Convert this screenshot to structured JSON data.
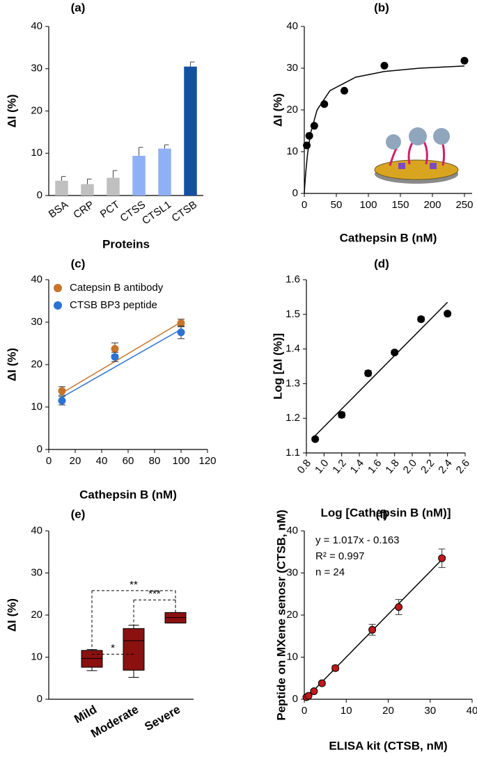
{
  "chart_data": [
    {
      "type": "bar",
      "title": "(a)",
      "xlabel": "Proteins",
      "ylabel": "ΔI (%)",
      "categories": [
        "BSA",
        "CRP",
        "PCT",
        "CTSS",
        "CTSL1",
        "CTSB"
      ],
      "values": [
        3.5,
        2.7,
        4.2,
        9.4,
        11.1,
        30.5
      ],
      "errors": [
        1.0,
        1.2,
        1.7,
        2.0,
        0.9,
        1.1
      ],
      "colors": [
        "#c0c0c0",
        "#c0c0c0",
        "#c0c0c0",
        "#8fb0f5",
        "#8fb0f5",
        "#1450a0"
      ],
      "ylim": [
        0,
        40
      ],
      "yticks": [
        0,
        10,
        20,
        30,
        40
      ]
    },
    {
      "type": "scatter",
      "title": "(b)",
      "xlabel": "Cathepsin B (nM)",
      "ylabel": "ΔI (%)",
      "series": [
        {
          "color": "#000000",
          "x": [
            3.9,
            7.8,
            15.6,
            31.25,
            62.5,
            125,
            250
          ],
          "values": [
            11.5,
            13.8,
            16.2,
            21.4,
            24.6,
            30.6,
            31.8
          ],
          "fit": {
            "x": [
              0,
              0.5,
              2,
              5,
              10,
              20,
              40,
              80,
              125,
              180,
              250
            ],
            "values": [
              0,
              1.28,
              4.57,
              9.41,
              14.55,
              20.0,
              24.62,
              27.83,
              29.2,
              30.0,
              30.53
            ]
          }
        }
      ],
      "xlim": [
        0,
        262
      ],
      "xticks": [
        0,
        50,
        100,
        150,
        200,
        250
      ],
      "ylim": [
        0,
        40
      ],
      "yticks": [
        0,
        10,
        20,
        30,
        40
      ]
    },
    {
      "type": "scatter",
      "title": "(c)",
      "xlabel": "Cathepsin B (nM)",
      "ylabel": "ΔI (%)",
      "series": [
        {
          "name": "Catepsin B antibody",
          "color": "#c8742a",
          "x": [
            10,
            50,
            100
          ],
          "values": [
            13.8,
            23.7,
            29.8
          ],
          "errors": [
            1.0,
            1.4,
            0.9
          ],
          "fit": {
            "x": [
              10,
              100
            ],
            "values": [
              13.3,
              30.0
            ]
          }
        },
        {
          "name": "CTSB BP3 peptide",
          "color": "#2b72d3",
          "x": [
            10,
            50,
            100
          ],
          "values": [
            11.5,
            21.8,
            27.6
          ],
          "errors": [
            1.0,
            1.1,
            1.5
          ],
          "fit": {
            "x": [
              10,
              100
            ],
            "values": [
              12.3,
              28.3
            ]
          }
        }
      ],
      "legend": "upper left",
      "xlim": [
        0,
        120
      ],
      "xticks": [
        0,
        20,
        40,
        60,
        80,
        100,
        120
      ],
      "ylim": [
        0,
        40
      ],
      "yticks": [
        0,
        10,
        20,
        30,
        40
      ]
    },
    {
      "type": "scatter",
      "title": "(d)",
      "xlabel": "Log [Cathepsin B (nM)]",
      "ylabel": "Log [ΔI (%)]",
      "series": [
        {
          "color": "#000000",
          "x": [
            0.9,
            1.2,
            1.5,
            1.8,
            2.1,
            2.4
          ],
          "values": [
            1.14,
            1.21,
            1.33,
            1.39,
            1.486,
            1.502
          ],
          "errors": [
            0.005,
            0.008,
            0.008,
            0.006,
            0.007,
            0.005
          ],
          "fit": {
            "x": [
              0.9,
              2.4
            ],
            "values": [
              1.15,
              1.535
            ]
          }
        }
      ],
      "xlim": [
        0.8,
        2.6
      ],
      "xticks": [
        0.8,
        {
          "value": 1,
          "label": "1.0"
        },
        1.2,
        1.4,
        1.6,
        1.8,
        {
          "value": 2,
          "label": "2.0"
        },
        2.2,
        2.4,
        2.6
      ],
      "ylim": [
        1.1,
        1.6
      ],
      "yticks": [
        1.1,
        1.2,
        1.3,
        1.4,
        1.5,
        1.6
      ]
    },
    {
      "type": "box",
      "title": "(e)",
      "ylabel": "ΔI (%)",
      "color": "#8b1010",
      "categories": [
        "Mild",
        "Moderate",
        "Severe"
      ],
      "boxes": [
        {
          "min": 6.8,
          "q1": 7.6,
          "median": 9.7,
          "q3": 11.6,
          "max": 11.8
        },
        {
          "min": 5.2,
          "q1": 6.9,
          "median": 13.9,
          "q3": 16.8,
          "max": 17.6
        },
        {
          "min": 18.1,
          "q1": 18.1,
          "median": 19.4,
          "q3": 20.6,
          "max": 20.6
        }
      ],
      "brackets": [
        {
          "label": "*",
          "from": 0,
          "to": 1,
          "y": 10.7
        },
        {
          "label": "**",
          "from": 0,
          "to": 2,
          "y": 25.8
        },
        {
          "label": "***",
          "from": 1,
          "to": 2,
          "y": 23.6
        }
      ],
      "ylim": [
        0,
        40
      ],
      "yticks": [
        0,
        10,
        20,
        30,
        40
      ]
    },
    {
      "type": "scatter",
      "title": "(f)",
      "xlabel": "ELISA kit (CTSB, nM)",
      "ylabel": "Peptide on MXene senosr (CTSB, nM)",
      "series": [
        {
          "color": "#c0181b",
          "x": [
            0.5,
            1.0,
            2.3,
            4.2,
            7.4,
            16.2,
            22.5,
            32.8
          ],
          "values": [
            0.5,
            0.8,
            1.9,
            3.8,
            7.4,
            16.5,
            21.9,
            33.5
          ],
          "errors": [
            0.2,
            0.3,
            0.4,
            0.5,
            0.6,
            1.3,
            1.8,
            2.2
          ],
          "fit": {
            "x": [
              0,
              33.2
            ],
            "values": [
              -0.163,
              33.6
            ]
          }
        }
      ],
      "annotations": [
        "y = 1.017x - 0.163",
        "R² = 0.997",
        "n = 24"
      ],
      "xlim": [
        0,
        40
      ],
      "xticks": [
        0,
        10,
        20,
        30,
        40
      ],
      "ylim": [
        0,
        40
      ],
      "yticks": [
        0,
        10,
        20,
        30,
        40
      ]
    }
  ]
}
